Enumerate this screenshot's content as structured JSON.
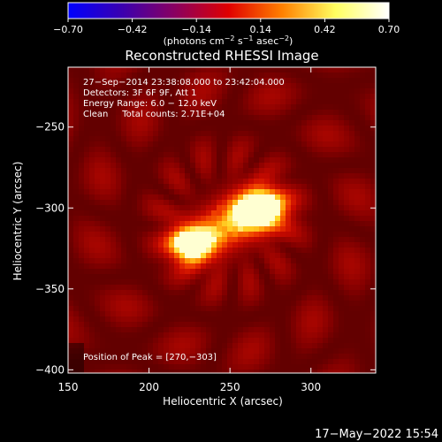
{
  "colorbar": {
    "ticks": [
      "−0.70",
      "−0.42",
      "−0.14",
      "0.14",
      "0.42",
      "0.70"
    ],
    "tick_values": [
      -0.7,
      -0.42,
      -0.14,
      0.14,
      0.42,
      0.7
    ],
    "range": [
      -0.7,
      0.7
    ],
    "unit_pre": "(photons cm",
    "unit_sup1": "−2",
    "unit_mid1": " s",
    "unit_sup2": "−1",
    "unit_mid2": " asec",
    "unit_sup3": "−2",
    "unit_post": ")",
    "colors": [
      "#0000ff",
      "#3a00b0",
      "#8a0060",
      "#e00000",
      "#ff8000",
      "#ffff60",
      "#ffffff"
    ]
  },
  "chart_data": {
    "type": "heatmap",
    "title": "Reconstructed RHESSI Image",
    "xlabel": "Heliocentric X (arcsec)",
    "ylabel": "Heliocentric Y (arcsec)",
    "xlim": [
      150,
      340
    ],
    "ylim": [
      -402,
      -213
    ],
    "xticks": [
      150,
      200,
      250,
      300
    ],
    "yticks": [
      -250,
      -300,
      -350,
      -400
    ],
    "xtick_labels": [
      "150",
      "200",
      "250",
      "300"
    ],
    "ytick_labels": [
      "−250",
      "−300",
      "−350",
      "−400"
    ],
    "annotations": [
      "27−Sep−2014 23:38:08.000 to 23:42:04.000",
      "Detectors: 3F 6F 9F, Att 1",
      "Energy Range: 6.0 − 12.0 keV",
      "Clean     Total counts: 2.71E+04"
    ],
    "peak_text": "Position of Peak = [270,−303]",
    "sources": [
      {
        "x": 268,
        "y": -301,
        "value": 0.7
      },
      {
        "x": 227,
        "y": -322,
        "value": 0.6
      }
    ],
    "grid": false
  },
  "footer": {
    "timestamp": "17−May−2022 15:54"
  }
}
